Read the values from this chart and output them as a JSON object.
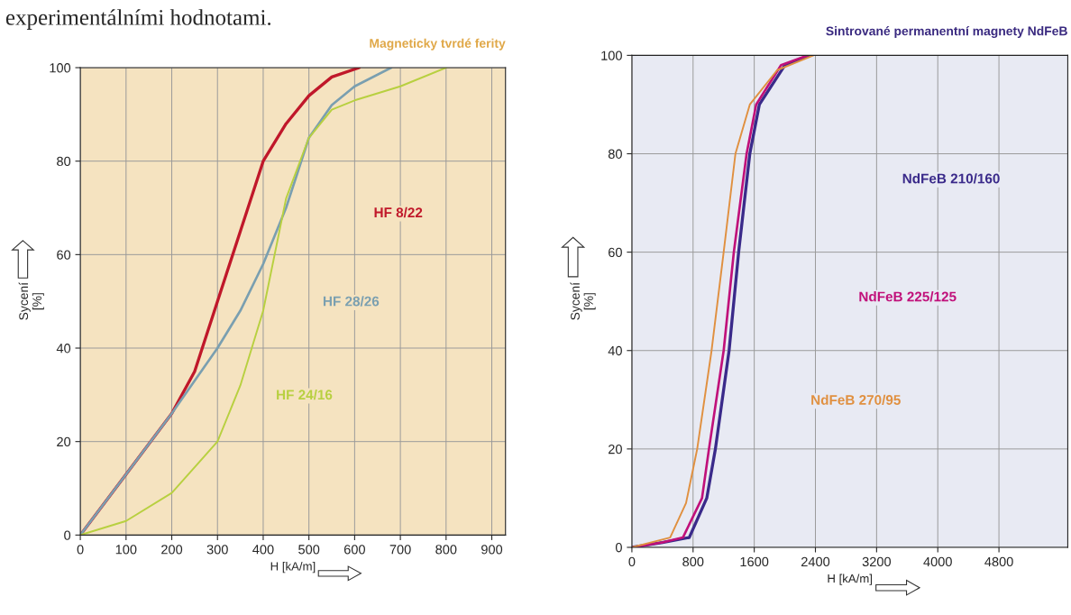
{
  "chart_data": [
    {
      "type": "line",
      "title": "Magneticky tvrdé ferity",
      "xlabel": "H [kA/m]",
      "ylabel": "Sycení\n[%]",
      "annotations": [
        "experimentálními hodnotami."
      ],
      "xlim": [
        0,
        930
      ],
      "ylim": [
        0,
        100
      ],
      "xticks": [
        0,
        100,
        200,
        300,
        400,
        500,
        600,
        700,
        800,
        900
      ],
      "yticks": [
        0,
        20,
        40,
        60,
        80,
        100
      ],
      "grid": true,
      "legend": false,
      "series": [
        {
          "name": "HF 8/22",
          "color": "#c0182a",
          "x": [
            0,
            100,
            200,
            250,
            300,
            350,
            400,
            450,
            500,
            550,
            610
          ],
          "values": [
            0,
            13,
            26,
            35,
            50,
            65,
            80,
            88,
            94,
            98,
            100
          ]
        },
        {
          "name": "HF 28/26",
          "color": "#7a9fb0",
          "x": [
            0,
            100,
            200,
            300,
            350,
            400,
            450,
            500,
            550,
            600,
            680
          ],
          "values": [
            0,
            13,
            26,
            40,
            48,
            58,
            70,
            85,
            92,
            96,
            100
          ]
        },
        {
          "name": "HF 24/16",
          "color": "#b8d040",
          "x": [
            0,
            100,
            200,
            300,
            350,
            400,
            450,
            500,
            550,
            600,
            700,
            800
          ],
          "values": [
            0,
            3,
            9,
            20,
            32,
            48,
            72,
            85,
            91,
            93,
            96,
            100
          ]
        }
      ]
    },
    {
      "type": "line",
      "title": "Sintrované permanentní magnety NdFeB",
      "xlabel": "H [kA/m]",
      "ylabel": "Sycení\n[%]",
      "xlim": [
        0,
        5700
      ],
      "ylim": [
        0,
        100
      ],
      "xticks": [
        0,
        800,
        1600,
        2400,
        3200,
        4000,
        4800
      ],
      "yticks": [
        0,
        20,
        40,
        60,
        80,
        100
      ],
      "grid": true,
      "legend": false,
      "series": [
        {
          "name": "NdFeB 210/160",
          "color": "#3a2a8a",
          "x": [
            0,
            400,
            750,
            979,
            1092,
            1271,
            1396,
            1542,
            1667,
            2000,
            2333
          ],
          "values": [
            0,
            1,
            2,
            10,
            20,
            40,
            60,
            80,
            90,
            98,
            100
          ]
        },
        {
          "name": "NdFeB 225/125",
          "color": "#c0107a",
          "x": [
            0,
            400,
            667,
            917,
            1008,
            1200,
            1333,
            1500,
            1625,
            1950,
            2300
          ],
          "values": [
            0,
            1,
            2,
            10,
            20,
            40,
            60,
            80,
            90,
            98,
            100
          ]
        },
        {
          "name": "NdFeB 270/95",
          "color": "#e09040",
          "x": [
            0,
            500,
            708,
            854,
            1042,
            1200,
            1354,
            1542,
            1900,
            2375
          ],
          "values": [
            0,
            2,
            9,
            20,
            40,
            60,
            80,
            90,
            97,
            100
          ]
        }
      ]
    }
  ]
}
